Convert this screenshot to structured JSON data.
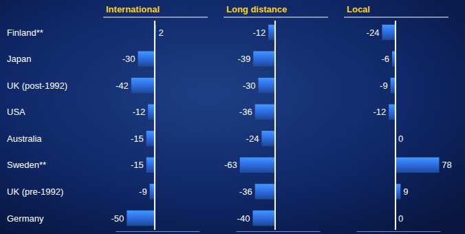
{
  "chart_data": {
    "type": "bar",
    "orientation": "horizontal",
    "data_labels": true,
    "tick_labels": false,
    "grid": false,
    "color": "#2f6fe6",
    "categories": [
      "Finland**",
      "Japan",
      "UK (post-1992)",
      "USA",
      "Australia",
      "Sweden**",
      "UK (pre-1992)",
      "Germany"
    ],
    "series": [
      {
        "name": "International",
        "values": [
          2,
          -30,
          -42,
          -12,
          -15,
          -15,
          -9,
          -50
        ]
      },
      {
        "name": "Long distance",
        "values": [
          -12,
          -39,
          -30,
          -36,
          -24,
          -63,
          -36,
          -40
        ]
      },
      {
        "name": "Local",
        "values": [
          -24,
          -6,
          -9,
          -12,
          0,
          78,
          9,
          0
        ]
      }
    ],
    "xlim": [
      -70,
      80
    ],
    "xticks": [
      0
    ]
  }
}
